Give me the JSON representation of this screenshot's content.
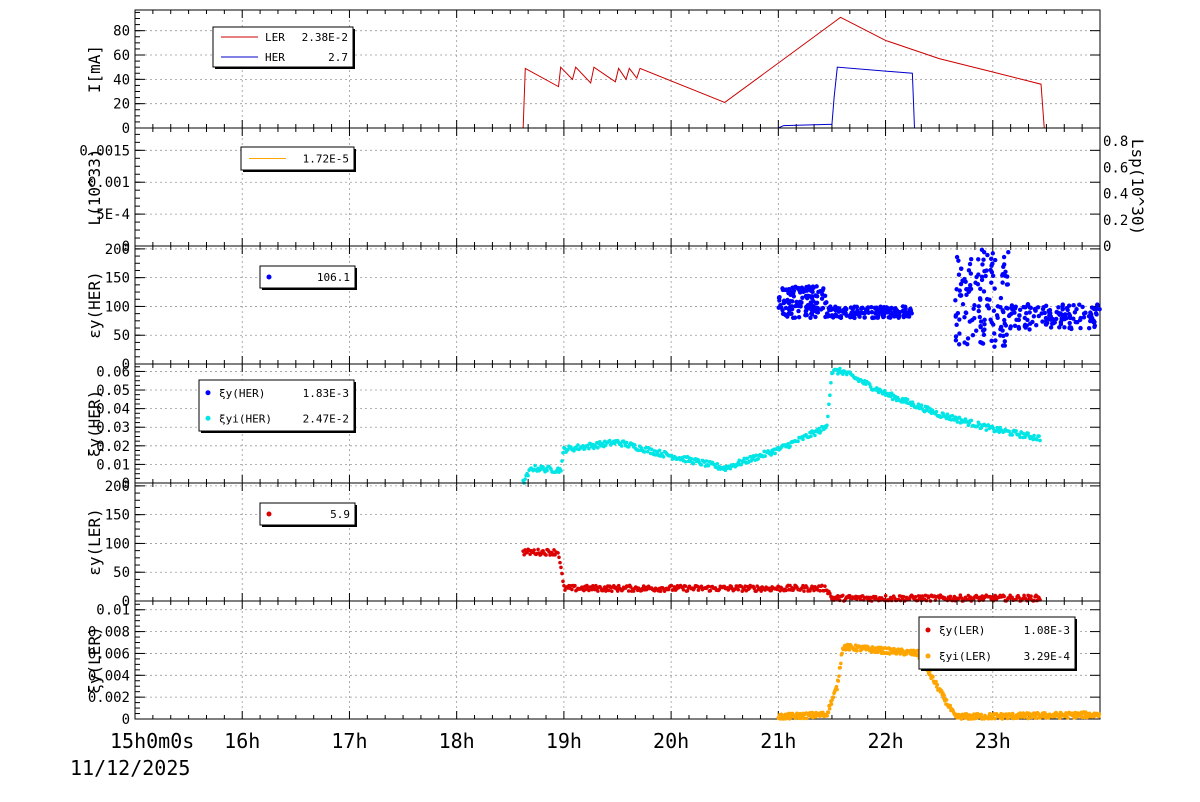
{
  "date_label": "11/12/2025",
  "first_time_label": "15h0m0s",
  "time_ticks": [
    "16h",
    "17h",
    "18h",
    "19h",
    "20h",
    "21h",
    "22h",
    "23h"
  ],
  "chart_data": [
    {
      "id": "current",
      "type": "line",
      "ylabel": "I[mA]",
      "ylim": [
        0,
        97
      ],
      "yticks": [
        "0",
        "20",
        "40",
        "60",
        "80"
      ],
      "ytick_values": [
        0,
        20,
        40,
        60,
        80
      ],
      "xlim": [
        15,
        24
      ],
      "legend": [
        {
          "name": "LER",
          "value": "2.38E-2",
          "color": "#cc0000"
        },
        {
          "name": "HER",
          "value": "2.7",
          "color": "#0000cc"
        }
      ],
      "series": [
        {
          "name": "LER",
          "color": "#cc0000",
          "x": [
            15,
            18.62,
            18.64,
            18.95,
            18.97,
            19.08,
            19.11,
            19.25,
            19.28,
            19.48,
            19.51,
            19.58,
            19.61,
            19.68,
            19.71,
            20.5,
            21.55,
            21.58,
            22.0,
            22.5,
            23.0,
            23.45,
            23.48,
            24
          ],
          "y": [
            0,
            0,
            49,
            34,
            50,
            40,
            50,
            37,
            50,
            38,
            49,
            40,
            49,
            41,
            49,
            21,
            89,
            91,
            72,
            57,
            46,
            36,
            0,
            0
          ]
        },
        {
          "name": "HER",
          "color": "#0000cc",
          "x": [
            15,
            21.0,
            21.05,
            21.47,
            21.5,
            21.52,
            21.55,
            22.25,
            22.27,
            24
          ],
          "y": [
            0,
            0,
            2,
            3,
            3,
            25,
            50,
            45,
            0,
            0
          ]
        }
      ]
    },
    {
      "id": "luminosity",
      "type": "line",
      "ylabel": "L(10^33)",
      "y2label": "Lsp(10^30)",
      "ylim": [
        0,
        0.00185
      ],
      "yticks": [
        "0",
        "5E-4",
        "0.001",
        "0.0015"
      ],
      "ytick_values": [
        0,
        0.0005,
        0.001,
        0.0015
      ],
      "y2ticks": [
        "0",
        "0.2",
        "0.4",
        "0.6",
        "0.8"
      ],
      "xlim": [
        15,
        24
      ],
      "legend": [
        {
          "name": "",
          "value": "1.72E-5",
          "color": "#ffa500"
        }
      ],
      "series": [
        {
          "name": "L",
          "color": "#ffa500",
          "x": [
            15,
            24
          ],
          "y": [
            0,
            0
          ]
        }
      ]
    },
    {
      "id": "emit_her",
      "type": "scatter",
      "ylabel": "εy(HER)",
      "ylim": [
        0,
        205
      ],
      "yticks": [
        "0",
        "50",
        "100",
        "150",
        "200"
      ],
      "ytick_values": [
        0,
        50,
        100,
        150,
        200
      ],
      "xlim": [
        15,
        24
      ],
      "legend": [
        {
          "name": "",
          "value": "106.1",
          "color": "#0000ff"
        }
      ],
      "series": [
        {
          "name": "",
          "color": "#0000ff",
          "segments": [
            {
              "x0": 21.0,
              "x1": 21.45,
              "ylo": 80,
              "yhi": 135
            },
            {
              "x0": 21.45,
              "x1": 22.25,
              "ylo": 80,
              "yhi": 100
            },
            {
              "x0": 22.65,
              "x1": 23.15,
              "ylo": 30,
              "yhi": 200
            },
            {
              "x0": 23.15,
              "x1": 24.0,
              "ylo": 60,
              "yhi": 105
            }
          ]
        }
      ]
    },
    {
      "id": "xi_her",
      "type": "scatter",
      "ylabel": "ξy(HER)",
      "ylim": [
        0,
        0.064
      ],
      "yticks": [
        "0",
        "0.01",
        "0.02",
        "0.03",
        "0.04",
        "0.05",
        "0.06"
      ],
      "ytick_values": [
        0,
        0.01,
        0.02,
        0.03,
        0.04,
        0.05,
        0.06
      ],
      "xlim": [
        15,
        24
      ],
      "legend": [
        {
          "name": "ξy(HER)",
          "value": "1.83E-3",
          "color": "#0000ff"
        },
        {
          "name": "ξyi(HER)",
          "value": "2.47E-2",
          "color": "#00e5e5"
        }
      ],
      "series": [
        {
          "name": "ξyi(HER)",
          "color": "#00e5e5",
          "trend": {
            "x": [
              18.62,
              18.7,
              18.97,
              19.0,
              19.5,
              19.9,
              20.5,
              21.0,
              21.45,
              21.5,
              21.6,
              22.0,
              22.5,
              23.0,
              23.45
            ],
            "y": [
              0.0,
              0.008,
              0.007,
              0.018,
              0.022,
              0.016,
              0.008,
              0.018,
              0.03,
              0.06,
              0.06,
              0.048,
              0.037,
              0.029,
              0.024
            ]
          }
        }
      ]
    },
    {
      "id": "emit_ler",
      "type": "scatter",
      "ylabel": "εy(LER)",
      "ylim": [
        0,
        205
      ],
      "yticks": [
        "0",
        "50",
        "100",
        "150",
        "200"
      ],
      "ytick_values": [
        0,
        50,
        100,
        150,
        200
      ],
      "xlim": [
        15,
        24
      ],
      "legend": [
        {
          "name": "",
          "value": "5.9",
          "color": "#dd0000"
        }
      ],
      "series": [
        {
          "name": "",
          "color": "#dd0000",
          "trend": {
            "x": [
              18.62,
              18.7,
              18.95,
              19.0,
              21.45,
              21.5,
              23.45
            ],
            "y": [
              85,
              85,
              85,
              22,
              22,
              5,
              5
            ]
          }
        }
      ]
    },
    {
      "id": "xi_ler",
      "type": "scatter",
      "ylabel": "ξy(LER)",
      "ylim": [
        0,
        0.0108
      ],
      "yticks": [
        "0",
        "0.002",
        "0.004",
        "0.006",
        "0.008",
        "0.01"
      ],
      "ytick_values": [
        0,
        0.002,
        0.004,
        0.006,
        0.008,
        0.01
      ],
      "xlim": [
        15,
        24
      ],
      "legend": [
        {
          "name": "ξy(LER)",
          "value": "1.08E-3",
          "color": "#dd0000"
        },
        {
          "name": "ξyi(LER)",
          "value": "3.29E-4",
          "color": "#ffa500"
        }
      ],
      "series": [
        {
          "name": "ξyi(LER)",
          "color": "#ffa500",
          "trend": {
            "x": [
              21.0,
              21.45,
              21.55,
              21.6,
              22.3,
              22.65,
              24.0
            ],
            "y": [
              0.0002,
              0.0004,
              0.003,
              0.0066,
              0.006,
              0.0002,
              0.0004
            ]
          }
        }
      ]
    }
  ]
}
